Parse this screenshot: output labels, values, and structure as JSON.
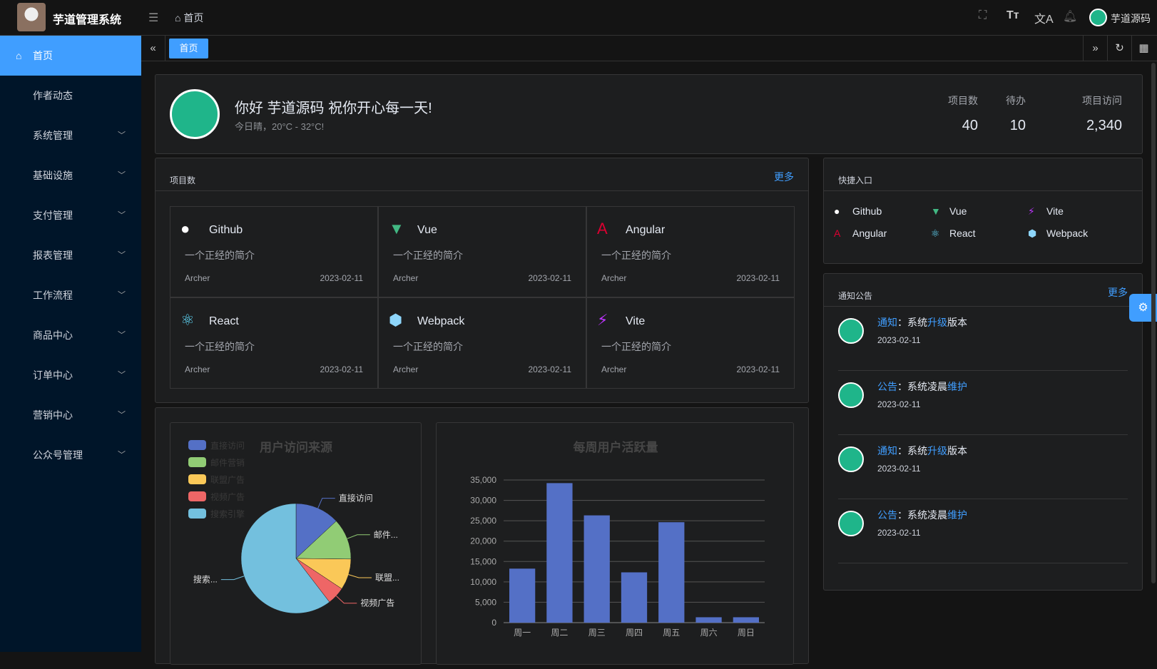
{
  "header": {
    "app_title": "芋道管理系统",
    "breadcrumb": "首页",
    "username": "芋道源码",
    "icons": [
      "fullscreen-icon",
      "font-size-icon",
      "translate-icon",
      "bell-icon"
    ]
  },
  "sidebar": {
    "items": [
      {
        "label": "首页",
        "active": true
      },
      {
        "label": "作者动态"
      },
      {
        "label": "系统管理",
        "expand": true
      },
      {
        "label": "基础设施",
        "expand": true
      },
      {
        "label": "支付管理",
        "expand": true
      },
      {
        "label": "报表管理",
        "expand": true
      },
      {
        "label": "工作流程",
        "expand": true
      },
      {
        "label": "商品中心",
        "expand": true
      },
      {
        "label": "订单中心",
        "expand": true
      },
      {
        "label": "营销中心",
        "expand": true
      },
      {
        "label": "公众号管理",
        "expand": true
      }
    ]
  },
  "tabs": {
    "items": [
      "首页"
    ]
  },
  "welcome": {
    "greeting": "你好 芋道源码 祝你开心每一天!",
    "weather": "今日晴，20°C - 32°C!",
    "stats": [
      {
        "label": "项目数",
        "value": "40"
      },
      {
        "label": "待办",
        "value": "10"
      },
      {
        "label": "项目访问",
        "value": "2,340"
      }
    ]
  },
  "projects": {
    "title": "项目数",
    "more": "更多",
    "items": [
      {
        "name": "Github",
        "desc": "一个正经的简介",
        "author": "Archer",
        "date": "2023-02-11",
        "icon": "github-icon",
        "color": "#ffffff"
      },
      {
        "name": "Vue",
        "desc": "一个正经的简介",
        "author": "Archer",
        "date": "2023-02-11",
        "icon": "vue-icon",
        "color": "#42b883"
      },
      {
        "name": "Angular",
        "desc": "一个正经的简介",
        "author": "Archer",
        "date": "2023-02-11",
        "icon": "angular-icon",
        "color": "#dd0031"
      },
      {
        "name": "React",
        "desc": "一个正经的简介",
        "author": "Archer",
        "date": "2023-02-11",
        "icon": "react-icon",
        "color": "#61dafb"
      },
      {
        "name": "Webpack",
        "desc": "一个正经的简介",
        "author": "Archer",
        "date": "2023-02-11",
        "icon": "webpack-icon",
        "color": "#8ed6fb"
      },
      {
        "name": "Vite",
        "desc": "一个正经的简介",
        "author": "Archer",
        "date": "2023-02-11",
        "icon": "vite-icon",
        "color": "#bd34fe"
      }
    ]
  },
  "shortcuts": {
    "title": "快捷入口",
    "items": [
      {
        "name": "Github",
        "icon": "github-icon",
        "color": "#ffffff"
      },
      {
        "name": "Vue",
        "icon": "vue-icon",
        "color": "#42b883"
      },
      {
        "name": "Vite",
        "icon": "vite-icon",
        "color": "#bd34fe"
      },
      {
        "name": "Angular",
        "icon": "angular-icon",
        "color": "#dd0031"
      },
      {
        "name": "React",
        "icon": "react-icon",
        "color": "#61dafb"
      },
      {
        "name": "Webpack",
        "icon": "webpack-icon",
        "color": "#8ed6fb"
      }
    ]
  },
  "notices": {
    "title": "通知公告",
    "more": "更多",
    "items": [
      {
        "type": "通知",
        "sep": "：",
        "pre": "系统",
        "hl": "升级",
        "post": "版本",
        "date": "2023-02-11"
      },
      {
        "type": "公告",
        "sep": "：",
        "pre": "系统凌晨",
        "hl": "维护",
        "post": "",
        "date": "2023-02-11"
      },
      {
        "type": "通知",
        "sep": "：",
        "pre": "系统",
        "hl": "升级",
        "post": "版本",
        "date": "2023-02-11"
      },
      {
        "type": "公告",
        "sep": "：",
        "pre": "系统凌晨",
        "hl": "维护",
        "post": "",
        "date": "2023-02-11"
      }
    ]
  },
  "chart_data": [
    {
      "type": "pie",
      "title": "用户访问来源",
      "legend_placement": "top-left",
      "slices": [
        {
          "name": "直接访问",
          "label": "直接访问",
          "value": 335,
          "color": "#5470c6"
        },
        {
          "name": "邮件营销",
          "label": "邮件...",
          "value": 310,
          "color": "#91cc75"
        },
        {
          "name": "联盟广告",
          "label": "联盟...",
          "value": 234,
          "color": "#fac858"
        },
        {
          "name": "视频广告",
          "label": "视频广告",
          "value": 135,
          "color": "#ee6666"
        },
        {
          "name": "搜索引擎",
          "label": "搜索...",
          "value": 1548,
          "color": "#73c0de"
        }
      ]
    },
    {
      "type": "bar",
      "title": "每周用户活跃量",
      "categories": [
        "周一",
        "周二",
        "周三",
        "周四",
        "周五",
        "周六",
        "周日"
      ],
      "values": [
        13253,
        34235,
        26321,
        12340,
        24643,
        1322,
        1324
      ],
      "ylim": [
        0,
        35000
      ],
      "yticks": [
        "0",
        "5,000",
        "10,000",
        "15,000",
        "20,000",
        "25,000",
        "30,000",
        "35,000"
      ],
      "grid": true,
      "color": "#5470c6"
    }
  ]
}
